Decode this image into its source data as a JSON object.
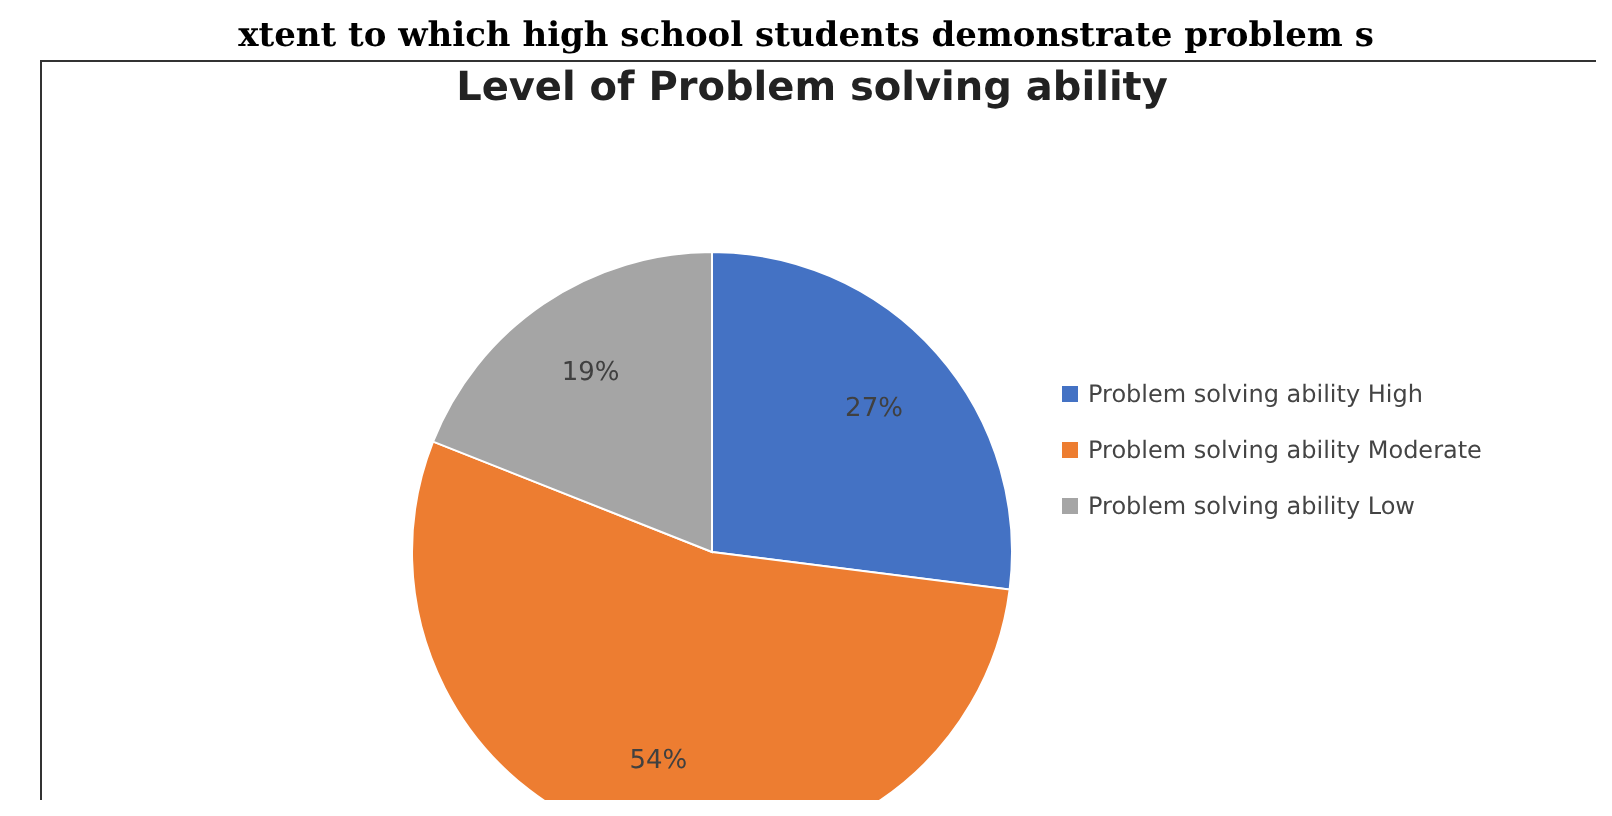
{
  "chart_data": {
    "type": "pie",
    "title": "Level of Problem solving ability",
    "annotations": [
      "xtent to which high school students demonstrate problem s"
    ],
    "categories": [
      "Problem solving ability High",
      "Problem solving ability Moderate",
      "Problem solving ability Low"
    ],
    "values": [
      27,
      54,
      19
    ],
    "colors": [
      "#4472c4",
      "#ed7d31",
      "#a5a5a5"
    ],
    "value_labels": [
      "27%",
      "54%",
      "19%"
    ],
    "legend": "right"
  }
}
